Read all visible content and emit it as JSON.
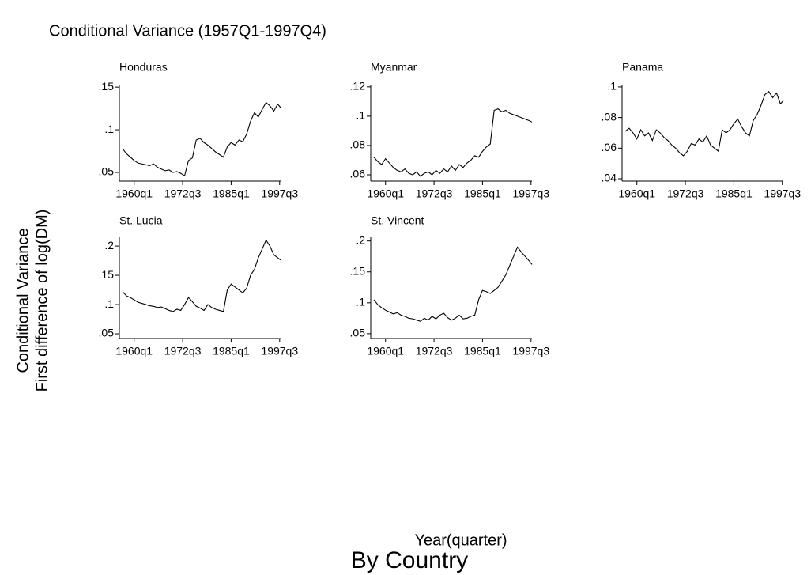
{
  "title": "Conditional Variance (1957Q1-1997Q4)",
  "y_axis_label": [
    "Conditional Variance",
    "First difference of log(DM)"
  ],
  "x_axis_label": "Year(quarter)",
  "caption": "By Country",
  "chart_data": [
    {
      "type": "line",
      "title": "Honduras",
      "color": "#000000",
      "x": [
        -12,
        -8,
        -4,
        0,
        4,
        8,
        12,
        16,
        20,
        24,
        28,
        32,
        36,
        40,
        44,
        48,
        52,
        56,
        60,
        64,
        68,
        72,
        76,
        80,
        84,
        88,
        92,
        96,
        100,
        104,
        108,
        112,
        116,
        120,
        124,
        128,
        132,
        136,
        140,
        144,
        148,
        151
      ],
      "values": [
        0.078,
        0.072,
        0.068,
        0.064,
        0.061,
        0.06,
        0.059,
        0.058,
        0.06,
        0.056,
        0.054,
        0.052,
        0.053,
        0.05,
        0.051,
        0.049,
        0.046,
        0.064,
        0.067,
        0.088,
        0.09,
        0.085,
        0.082,
        0.078,
        0.074,
        0.071,
        0.068,
        0.08,
        0.085,
        0.082,
        0.088,
        0.086,
        0.095,
        0.11,
        0.12,
        0.115,
        0.124,
        0.132,
        0.128,
        0.122,
        0.13,
        0.126
      ],
      "xlim": [
        -12,
        151
      ],
      "xticks": [
        {
          "value": 0,
          "label": "1960q1"
        },
        {
          "value": 50,
          "label": "1972q3"
        },
        {
          "value": 100,
          "label": "1985q1"
        },
        {
          "value": 150,
          "label": "1997q3"
        }
      ],
      "ylim": [
        0.0426,
        0.152
      ],
      "yticks": [
        {
          "value": 0.05,
          "label": ".05"
        },
        {
          "value": 0.1,
          "label": ".1"
        },
        {
          "value": 0.15,
          "label": ".15"
        }
      ]
    },
    {
      "type": "line",
      "title": "Myanmar",
      "color": "#000000",
      "x": [
        -12,
        -8,
        -4,
        0,
        4,
        8,
        12,
        16,
        20,
        24,
        28,
        32,
        36,
        40,
        44,
        48,
        52,
        56,
        60,
        64,
        68,
        72,
        76,
        80,
        84,
        88,
        92,
        96,
        100,
        104,
        108,
        112,
        116,
        120,
        124,
        128,
        132,
        136,
        140,
        144,
        148,
        151
      ],
      "values": [
        0.072,
        0.069,
        0.067,
        0.071,
        0.068,
        0.065,
        0.063,
        0.062,
        0.064,
        0.061,
        0.06,
        0.062,
        0.059,
        0.061,
        0.062,
        0.06,
        0.063,
        0.061,
        0.064,
        0.062,
        0.066,
        0.063,
        0.067,
        0.065,
        0.068,
        0.07,
        0.073,
        0.072,
        0.076,
        0.079,
        0.081,
        0.104,
        0.105,
        0.103,
        0.104,
        0.102,
        0.101,
        0.1,
        0.099,
        0.098,
        0.097,
        0.096
      ],
      "xlim": [
        -12,
        151
      ],
      "xticks": [
        {
          "value": 0,
          "label": "1960q1"
        },
        {
          "value": 50,
          "label": "1972q3"
        },
        {
          "value": 100,
          "label": "1985q1"
        },
        {
          "value": 150,
          "label": "1997q3"
        }
      ],
      "ylim": [
        0.0573,
        0.121
      ],
      "yticks": [
        {
          "value": 0.06,
          "label": ".06"
        },
        {
          "value": 0.08,
          "label": ".08"
        },
        {
          "value": 0.1,
          "label": ".1"
        },
        {
          "value": 0.12,
          "label": ".12"
        }
      ]
    },
    {
      "type": "line",
      "title": "Panama",
      "color": "#000000",
      "x": [
        -12,
        -8,
        -4,
        0,
        4,
        8,
        12,
        16,
        20,
        24,
        28,
        32,
        36,
        40,
        44,
        48,
        52,
        56,
        60,
        64,
        68,
        72,
        76,
        80,
        84,
        88,
        92,
        96,
        100,
        104,
        108,
        112,
        116,
        120,
        124,
        128,
        132,
        136,
        140,
        144,
        148,
        151
      ],
      "values": [
        0.071,
        0.073,
        0.07,
        0.066,
        0.072,
        0.068,
        0.07,
        0.065,
        0.072,
        0.07,
        0.067,
        0.065,
        0.062,
        0.06,
        0.057,
        0.055,
        0.058,
        0.063,
        0.062,
        0.066,
        0.064,
        0.068,
        0.062,
        0.06,
        0.058,
        0.072,
        0.07,
        0.072,
        0.076,
        0.079,
        0.074,
        0.07,
        0.068,
        0.078,
        0.082,
        0.088,
        0.095,
        0.097,
        0.093,
        0.096,
        0.089,
        0.091
      ],
      "xlim": [
        -12,
        151
      ],
      "xticks": [
        {
          "value": 0,
          "label": "1960q1"
        },
        {
          "value": 50,
          "label": "1972q3"
        },
        {
          "value": 100,
          "label": "1985q1"
        },
        {
          "value": 150,
          "label": "1997q3"
        }
      ],
      "ylim": [
        0.04,
        0.101
      ],
      "yticks": [
        {
          "value": 0.04,
          "label": ".04"
        },
        {
          "value": 0.06,
          "label": ".06"
        },
        {
          "value": 0.08,
          "label": ".08"
        },
        {
          "value": 0.1,
          "label": ".1"
        }
      ]
    },
    {
      "type": "line",
      "title": "St. Lucia",
      "color": "#000000",
      "x": [
        -12,
        -8,
        -4,
        0,
        4,
        8,
        12,
        16,
        20,
        24,
        28,
        32,
        36,
        40,
        44,
        48,
        52,
        56,
        60,
        64,
        68,
        72,
        76,
        80,
        84,
        88,
        92,
        96,
        100,
        104,
        108,
        112,
        116,
        120,
        124,
        128,
        132,
        136,
        140,
        144,
        148,
        151
      ],
      "values": [
        0.122,
        0.115,
        0.112,
        0.108,
        0.104,
        0.102,
        0.1,
        0.098,
        0.097,
        0.095,
        0.096,
        0.093,
        0.09,
        0.088,
        0.092,
        0.09,
        0.1,
        0.112,
        0.105,
        0.097,
        0.094,
        0.09,
        0.1,
        0.095,
        0.092,
        0.09,
        0.088,
        0.125,
        0.135,
        0.13,
        0.125,
        0.12,
        0.128,
        0.15,
        0.16,
        0.18,
        0.195,
        0.21,
        0.2,
        0.185,
        0.18,
        0.176
      ],
      "xlim": [
        -12,
        151
      ],
      "xticks": [
        {
          "value": 0,
          "label": "1960q1"
        },
        {
          "value": 50,
          "label": "1972q3"
        },
        {
          "value": 100,
          "label": "1985q1"
        },
        {
          "value": 150,
          "label": "1997q3"
        }
      ],
      "ylim": [
        0.046,
        0.215
      ],
      "yticks": [
        {
          "value": 0.05,
          "label": ".05"
        },
        {
          "value": 0.1,
          "label": ".1"
        },
        {
          "value": 0.15,
          "label": ".15"
        },
        {
          "value": 0.2,
          "label": ".2"
        }
      ]
    },
    {
      "type": "line",
      "title": "St. Vincent",
      "color": "#000000",
      "x": [
        -12,
        -8,
        -4,
        0,
        4,
        8,
        12,
        16,
        20,
        24,
        28,
        32,
        36,
        40,
        44,
        48,
        52,
        56,
        60,
        64,
        68,
        72,
        76,
        80,
        84,
        88,
        92,
        96,
        100,
        104,
        108,
        112,
        116,
        120,
        124,
        128,
        132,
        136,
        140,
        144,
        148,
        151
      ],
      "values": [
        0.105,
        0.097,
        0.092,
        0.088,
        0.085,
        0.082,
        0.084,
        0.08,
        0.078,
        0.075,
        0.074,
        0.072,
        0.07,
        0.075,
        0.072,
        0.078,
        0.074,
        0.08,
        0.083,
        0.076,
        0.072,
        0.075,
        0.08,
        0.074,
        0.075,
        0.078,
        0.08,
        0.105,
        0.12,
        0.118,
        0.115,
        0.12,
        0.125,
        0.135,
        0.145,
        0.16,
        0.175,
        0.19,
        0.182,
        0.175,
        0.168,
        0.162
      ],
      "xlim": [
        -12,
        151
      ],
      "xticks": [
        {
          "value": 0,
          "label": "1960q1"
        },
        {
          "value": 50,
          "label": "1972q3"
        },
        {
          "value": 100,
          "label": "1985q1"
        },
        {
          "value": 150,
          "label": "1997q3"
        }
      ],
      "ylim": [
        0.046,
        0.206
      ],
      "yticks": [
        {
          "value": 0.05,
          "label": ".05"
        },
        {
          "value": 0.1,
          "label": ".1"
        },
        {
          "value": 0.15,
          "label": ".15"
        },
        {
          "value": 0.2,
          "label": ".2"
        }
      ]
    }
  ]
}
